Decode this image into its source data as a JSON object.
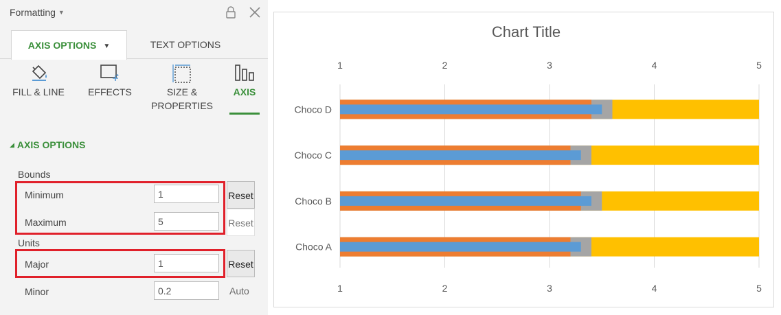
{
  "pane": {
    "title": "Formatting",
    "tabs": {
      "axis_options": "AXIS OPTIONS",
      "text_options": "TEXT OPTIONS"
    },
    "subtabs": {
      "fill_line": "FILL & LINE",
      "effects": "EFFECTS",
      "size_line1": "SIZE &",
      "size_line2": "PROPERTIES",
      "axis": "AXIS"
    },
    "section_title": "AXIS OPTIONS",
    "bounds": {
      "label": "Bounds",
      "minimum_label": "Minimum",
      "minimum_value": "1",
      "minimum_button": "Reset",
      "maximum_label": "Maximum",
      "maximum_value": "5",
      "maximum_button": "Reset"
    },
    "units": {
      "label": "Units",
      "major_label": "Major",
      "major_value": "1",
      "major_button": "Reset",
      "minor_label": "Minor",
      "minor_value": "0.2",
      "minor_button": "Auto"
    },
    "accent_color": "#3a8f3a",
    "highlight_color": "#e0202a"
  },
  "chart_data": {
    "type": "bar",
    "orientation": "horizontal",
    "title": "Chart Title",
    "categories": [
      "Choco D",
      "Choco C",
      "Choco B",
      "Choco A"
    ],
    "xlim": [
      1,
      5
    ],
    "ticks": [
      "1",
      "2",
      "3",
      "4",
      "5"
    ],
    "tick_values": [
      1,
      2,
      3,
      4,
      5
    ],
    "axis_labels_top_and_bottom": true,
    "grid": true,
    "series": [
      {
        "color": "#ffc000",
        "values": [
          5,
          5,
          5,
          5
        ]
      },
      {
        "color": "#a5a5a5",
        "values": [
          3.6,
          3.4,
          3.5,
          3.4
        ]
      },
      {
        "color": "#ed7d31",
        "values": [
          3.4,
          3.2,
          3.3,
          3.2
        ]
      },
      {
        "color": "#5b9bd5",
        "values": [
          3.5,
          3.3,
          3.4,
          3.3
        ]
      }
    ]
  }
}
